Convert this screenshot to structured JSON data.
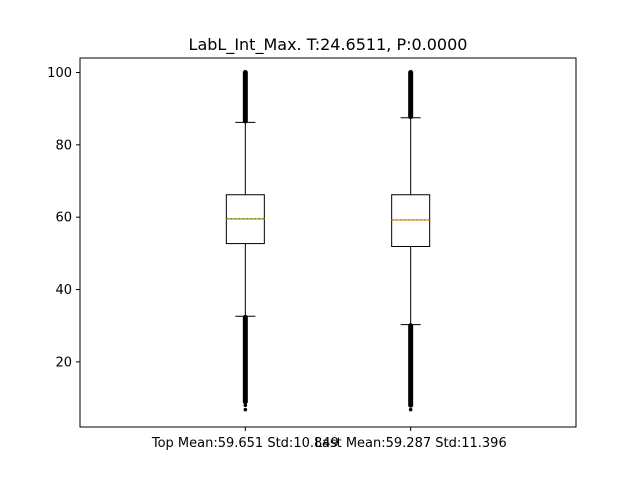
{
  "chart_data": {
    "type": "box",
    "title": "LabL_Int_Max. T:24.6511, P:0.0000",
    "xlabel": "",
    "ylabel": "",
    "ylim": [
      2,
      104
    ],
    "yticks": [
      20,
      40,
      60,
      80,
      100
    ],
    "grid": false,
    "colors": {
      "box": "#000000",
      "median": "#ff7f0e",
      "mean": "#2ca02c",
      "outlier": "#000000"
    },
    "categories": [
      "Top Mean:59.651 Std:10.849",
      "Last Mean:59.287 Std:11.396"
    ],
    "boxes": [
      {
        "q1": 52.7,
        "median": 59.5,
        "mean": 59.651,
        "q3": 66.2,
        "whisker_low": 32.6,
        "whisker_high": 86.2,
        "outliers_low_range": [
          9.0,
          32.3
        ],
        "outliers_high_range": [
          86.6,
          100
        ],
        "sparse_outliers_low": [
          8.0,
          6.8
        ]
      },
      {
        "q1": 51.9,
        "median": 59.2,
        "mean": 59.287,
        "q3": 66.2,
        "whisker_low": 30.3,
        "whisker_high": 87.5,
        "outliers_low_range": [
          8.0,
          30.0
        ],
        "outliers_high_range": [
          87.8,
          100
        ],
        "sparse_outliers_low": [
          6.8
        ]
      }
    ]
  }
}
